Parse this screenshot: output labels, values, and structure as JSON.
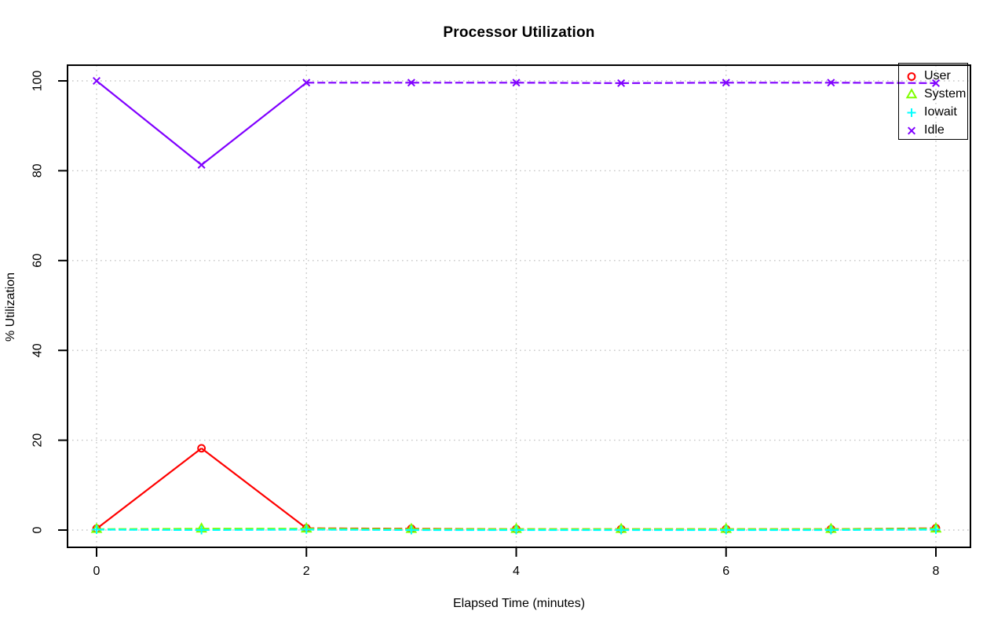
{
  "title": "Processor Utilization",
  "chart_data": {
    "type": "line",
    "title": "Processor Utilization",
    "xlabel": "Elapsed Time (minutes)",
    "ylabel": "% Utilization",
    "x": [
      0,
      1,
      2,
      3,
      4,
      5,
      6,
      7,
      8
    ],
    "xlim": [
      0,
      8
    ],
    "ylim": [
      0,
      100
    ],
    "xticks": [
      0,
      2,
      4,
      6,
      8
    ],
    "yticks": [
      0,
      20,
      40,
      60,
      80,
      100
    ],
    "grid": true,
    "legend_position": "top-right",
    "series": [
      {
        "name": "User",
        "color": "#FF0000",
        "marker": "circle",
        "values": [
          0.3,
          18.2,
          0.4,
          0.3,
          0.2,
          0.2,
          0.2,
          0.2,
          0.4
        ]
      },
      {
        "name": "System",
        "color": "#80FF00",
        "marker": "triangle",
        "values": [
          0.2,
          0.3,
          0.3,
          0.2,
          0.2,
          0.2,
          0.2,
          0.2,
          0.3
        ]
      },
      {
        "name": "Iowait",
        "color": "#00FFFF",
        "marker": "plus",
        "values": [
          0.1,
          0.0,
          0.1,
          0.0,
          0.0,
          0.0,
          0.0,
          0.0,
          0.1
        ]
      },
      {
        "name": "Idle",
        "color": "#8000FF",
        "marker": "x",
        "values": [
          100.0,
          81.3,
          99.6,
          99.6,
          99.6,
          99.5,
          99.6,
          99.6,
          99.5
        ]
      }
    ]
  },
  "colors": {
    "grid": "#C6C6C6",
    "axis": "#000000",
    "background": "#FFFFFF"
  }
}
